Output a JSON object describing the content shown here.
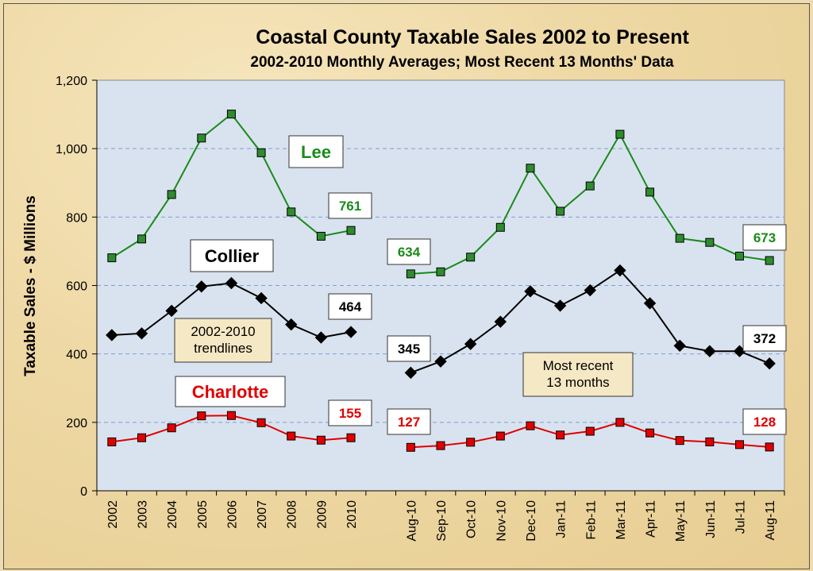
{
  "chart_data": {
    "type": "line",
    "title": "Coastal County Taxable Sales 2002 to Present",
    "subtitle": "2002-2010 Monthly Averages; Most Recent 13 Months' Data",
    "top_cut_text": "",
    "ylabel": "Taxable Sales - $ Millions",
    "ylim": [
      0,
      1200
    ],
    "yticks": [
      0,
      200,
      400,
      600,
      800,
      1000,
      1200
    ],
    "ytick_labels": [
      "0",
      "200",
      "400",
      "600",
      "800",
      "1,000",
      "1,200"
    ],
    "grid": "horizontal dashed",
    "annual_categories": [
      "2002",
      "2003",
      "2004",
      "2005",
      "2006",
      "2007",
      "2008",
      "2009",
      "2010"
    ],
    "monthly_categories": [
      "Aug-10",
      "Sep-10",
      "Oct-10",
      "Nov-10",
      "Dec-10",
      "Jan-11",
      "Feb-11",
      "Mar-11",
      "Apr-11",
      "May-11",
      "Jun-11",
      "Jul-11",
      "Aug-11"
    ],
    "series": [
      {
        "name": "Lee",
        "color": "#1a8a1a",
        "marker": "square",
        "marker_fill": "#2e8b2e",
        "annual": [
          681,
          736,
          866,
          1031,
          1101,
          988,
          815,
          744,
          761
        ],
        "monthly": [
          634,
          640,
          683,
          770,
          943,
          817,
          891,
          1042,
          873,
          738,
          726,
          686,
          673
        ]
      },
      {
        "name": "Collier",
        "color": "#000000",
        "marker": "diamond",
        "marker_fill": "#000000",
        "annual": [
          455,
          460,
          526,
          597,
          607,
          563,
          486,
          448,
          464
        ],
        "monthly": [
          345,
          378,
          429,
          494,
          583,
          541,
          586,
          644,
          548,
          424,
          408,
          408,
          372
        ]
      },
      {
        "name": "Charlotte",
        "color": "#e00000",
        "marker": "square",
        "marker_fill": "#e00000",
        "annual": [
          143,
          155,
          184,
          219,
          220,
          199,
          160,
          148,
          155
        ],
        "monthly": [
          127,
          132,
          142,
          160,
          190,
          163,
          174,
          200,
          169,
          147,
          143,
          135,
          128
        ]
      }
    ],
    "value_callouts": [
      {
        "series": "Lee",
        "text": "761"
      },
      {
        "series": "Lee",
        "text": "634"
      },
      {
        "series": "Lee",
        "text": "673"
      },
      {
        "series": "Collier",
        "text": "464"
      },
      {
        "series": "Collier",
        "text": "345"
      },
      {
        "series": "Collier",
        "text": "372"
      },
      {
        "series": "Charlotte",
        "text": "155"
      },
      {
        "series": "Charlotte",
        "text": "127"
      },
      {
        "series": "Charlotte",
        "text": "128"
      }
    ],
    "annotations": {
      "trendlines": [
        "2002-2010",
        "trendlines"
      ],
      "recent": [
        "Most recent",
        "13 months"
      ]
    }
  }
}
